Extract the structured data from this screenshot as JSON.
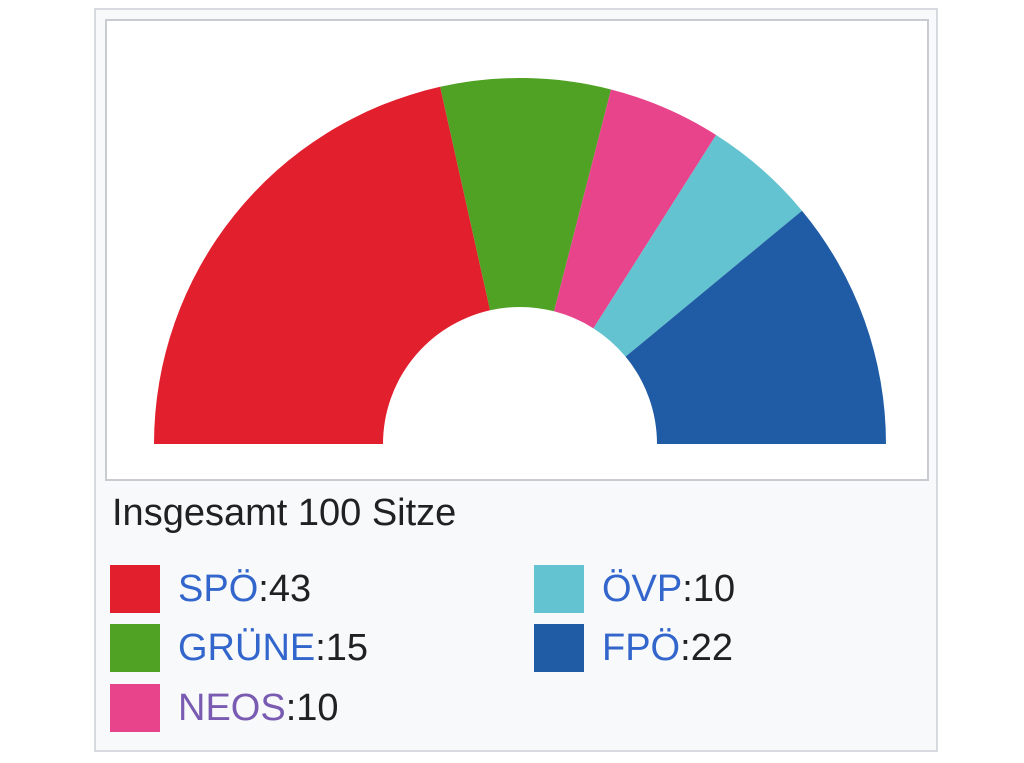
{
  "chart_data": {
    "type": "pie",
    "subtype": "parliament-semicircle",
    "total_label": "Insgesamt 100 Sitze",
    "total_seats": 100,
    "arc_order": [
      "SPÖ",
      "GRÜNE",
      "NEOS",
      "ÖVP",
      "FPÖ"
    ],
    "series": [
      {
        "name": "SPÖ",
        "value": 43,
        "value_text": "43",
        "color": "#e21f2d"
      },
      {
        "name": "GRÜNE",
        "value": 15,
        "value_text": "15",
        "color": "#50a225"
      },
      {
        "name": "NEOS",
        "value": 10,
        "value_text": "10",
        "color": "#e7448b"
      },
      {
        "name": "ÖVP",
        "value": 10,
        "value_text": "10",
        "color": "#63c3d0"
      },
      {
        "name": "FPÖ",
        "value": 22,
        "value_text": "22",
        "color": "#205ca5"
      }
    ],
    "legend": [
      {
        "name": "SPÖ",
        "value_text": "43",
        "color": "#e21f2d",
        "link_state": "link"
      },
      {
        "name": "GRÜNE",
        "value_text": "15",
        "color": "#50a225",
        "link_state": "link"
      },
      {
        "name": "NEOS",
        "value_text": "10",
        "color": "#e7448b",
        "link_state": "visited"
      },
      {
        "name": "ÖVP",
        "value_text": "10",
        "color": "#63c3d0",
        "link_state": "link"
      },
      {
        "name": "FPÖ",
        "value_text": "22",
        "color": "#205ca5",
        "link_state": "link"
      }
    ],
    "legend_placement": "bottom"
  },
  "colors": {
    "link": "#3366cc",
    "visited_link": "#795cb2",
    "text": "#202122",
    "card_background": "#f8f9fa",
    "plot_background": "#ffffff",
    "border": "#c8ccd1"
  }
}
